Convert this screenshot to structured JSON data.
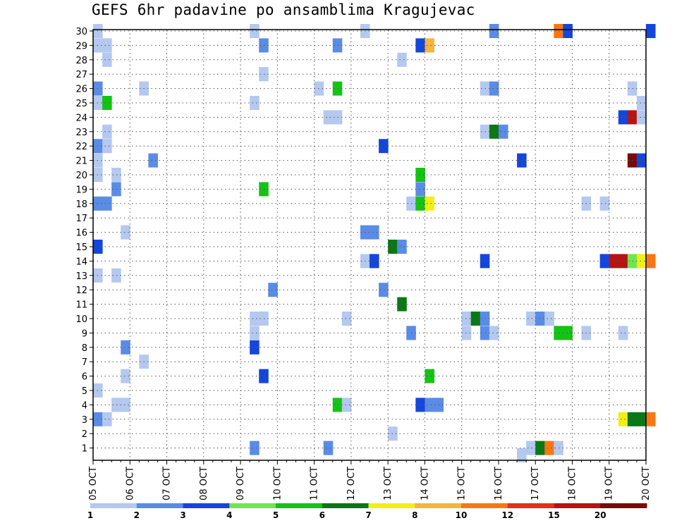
{
  "chart_data": {
    "type": "heatmap",
    "title": "GEFS 6hr padavine po ansamblima Kragujevac",
    "x_dates": [
      "05 OCT",
      "06 OCT",
      "07 OCT",
      "08 OCT",
      "09 OCT",
      "10 OCT",
      "11 OCT",
      "12 OCT",
      "13 OCT",
      "14 OCT",
      "15 OCT",
      "16 OCT",
      "17 OCT",
      "18 OCT",
      "19 OCT",
      "20 OCT"
    ],
    "y_members": [
      1,
      2,
      3,
      4,
      5,
      6,
      7,
      8,
      9,
      10,
      11,
      12,
      13,
      14,
      15,
      16,
      17,
      18,
      19,
      20,
      21,
      22,
      23,
      24,
      25,
      26,
      27,
      28,
      29,
      30
    ],
    "xlim": [
      0,
      15
    ],
    "ylim": [
      0.5,
      30
    ],
    "grid": true,
    "colorbar": {
      "labels": [
        "1",
        "2",
        "3",
        "4",
        "5",
        "6",
        "7",
        "8",
        "10",
        "12",
        "15",
        "20"
      ],
      "colors": [
        "#b4c8f0",
        "#5a8ce6",
        "#1446dc",
        "#6ee650",
        "#14c314",
        "#0a7814",
        "#f0f014",
        "#f5b43c",
        "#f57814",
        "#e13214",
        "#b41414",
        "#780a0a"
      ]
    },
    "cells": [
      [
        0.0,
        30,
        1
      ],
      [
        0.0,
        29,
        1
      ],
      [
        0.25,
        29,
        1
      ],
      [
        0.25,
        28,
        1
      ],
      [
        0.0,
        26,
        2
      ],
      [
        0.0,
        25,
        1
      ],
      [
        0.25,
        25,
        5
      ],
      [
        0.25,
        23,
        1
      ],
      [
        0.0,
        22,
        2
      ],
      [
        0.25,
        22,
        1
      ],
      [
        0.0,
        21,
        1
      ],
      [
        0.0,
        20,
        1
      ],
      [
        0.5,
        20,
        1
      ],
      [
        0.5,
        19,
        2
      ],
      [
        0.0,
        18,
        2
      ],
      [
        0.25,
        18,
        2
      ],
      [
        0.0,
        15,
        3
      ],
      [
        0.0,
        13,
        1
      ],
      [
        0.5,
        13,
        1
      ],
      [
        0.0,
        5,
        1
      ],
      [
        0.0,
        3,
        2
      ],
      [
        0.25,
        3,
        1
      ],
      [
        0.5,
        4,
        1
      ],
      [
        0.75,
        4,
        1
      ],
      [
        0.75,
        8,
        2
      ],
      [
        0.75,
        6,
        1
      ],
      [
        0.75,
        16,
        1
      ],
      [
        1.25,
        26,
        1
      ],
      [
        1.25,
        7,
        1
      ],
      [
        1.5,
        21,
        2
      ],
      [
        4.25,
        30,
        1
      ],
      [
        4.5,
        29,
        2
      ],
      [
        4.5,
        27,
        1
      ],
      [
        4.25,
        25,
        1
      ],
      [
        4.5,
        19,
        5
      ],
      [
        4.25,
        10,
        1
      ],
      [
        4.5,
        10,
        1
      ],
      [
        4.25,
        9,
        1
      ],
      [
        4.25,
        8,
        3
      ],
      [
        4.5,
        6,
        3
      ],
      [
        4.25,
        1,
        2
      ],
      [
        4.75,
        12,
        2
      ],
      [
        6.0,
        26,
        1
      ],
      [
        6.25,
        24,
        1
      ],
      [
        6.5,
        24,
        1
      ],
      [
        6.5,
        29,
        2
      ],
      [
        6.5,
        26,
        5
      ],
      [
        6.75,
        10,
        1
      ],
      [
        6.5,
        4,
        5
      ],
      [
        6.75,
        4,
        1
      ],
      [
        6.25,
        1,
        2
      ],
      [
        7.25,
        30,
        1
      ],
      [
        7.25,
        16,
        2
      ],
      [
        7.5,
        16,
        2
      ],
      [
        7.25,
        14,
        1
      ],
      [
        7.5,
        14,
        3
      ],
      [
        7.75,
        22,
        3
      ],
      [
        7.75,
        12,
        2
      ],
      [
        8.0,
        15,
        6
      ],
      [
        8.25,
        15,
        2
      ],
      [
        8.0,
        2,
        1
      ],
      [
        8.25,
        28,
        1
      ],
      [
        8.25,
        11,
        6
      ],
      [
        8.5,
        18,
        1
      ],
      [
        8.5,
        9,
        2
      ],
      [
        8.75,
        20,
        5
      ],
      [
        8.75,
        19,
        2
      ],
      [
        8.75,
        18,
        5
      ],
      [
        9.0,
        18,
        7
      ],
      [
        8.75,
        29,
        3
      ],
      [
        9.0,
        29,
        8
      ],
      [
        9.0,
        6,
        5
      ],
      [
        8.75,
        4,
        3
      ],
      [
        9.0,
        4,
        2
      ],
      [
        9.25,
        4,
        2
      ],
      [
        10.0,
        10,
        1
      ],
      [
        10.0,
        9,
        1
      ],
      [
        10.25,
        10,
        6
      ],
      [
        10.5,
        10,
        2
      ],
      [
        10.5,
        9,
        2
      ],
      [
        10.75,
        9,
        1
      ],
      [
        10.5,
        26,
        1
      ],
      [
        10.75,
        26,
        2
      ],
      [
        10.5,
        23,
        1
      ],
      [
        10.75,
        23,
        6
      ],
      [
        11.0,
        23,
        2
      ],
      [
        10.5,
        14,
        3
      ],
      [
        10.75,
        30,
        2
      ],
      [
        11.5,
        21,
        3
      ],
      [
        11.5,
        0.5,
        1
      ],
      [
        11.75,
        10,
        1
      ],
      [
        12.0,
        10,
        2
      ],
      [
        12.25,
        10,
        1
      ],
      [
        11.75,
        1,
        1
      ],
      [
        12.0,
        1,
        6
      ],
      [
        12.25,
        1,
        9
      ],
      [
        12.5,
        1,
        1
      ],
      [
        12.5,
        9,
        5
      ],
      [
        12.75,
        9,
        5
      ],
      [
        12.5,
        30,
        9
      ],
      [
        12.75,
        30,
        3
      ],
      [
        13.25,
        18,
        1
      ],
      [
        13.75,
        18,
        1
      ],
      [
        13.25,
        9,
        1
      ],
      [
        13.75,
        14,
        3
      ],
      [
        14.0,
        14,
        11
      ],
      [
        14.25,
        14,
        11
      ],
      [
        14.5,
        14,
        4
      ],
      [
        14.75,
        14,
        7
      ],
      [
        14.25,
        24,
        3
      ],
      [
        14.5,
        24,
        11
      ],
      [
        14.75,
        24,
        7
      ],
      [
        14.5,
        21,
        12
      ],
      [
        14.75,
        21,
        3
      ],
      [
        14.5,
        26,
        1
      ],
      [
        14.75,
        25,
        1
      ],
      [
        14.75,
        24,
        1
      ],
      [
        14.25,
        9,
        1
      ],
      [
        14.25,
        3,
        7
      ],
      [
        14.5,
        3,
        6
      ],
      [
        14.75,
        3,
        6
      ],
      [
        15.0,
        3,
        9
      ],
      [
        15.0,
        14,
        9
      ],
      [
        15.0,
        30,
        3
      ]
    ]
  }
}
